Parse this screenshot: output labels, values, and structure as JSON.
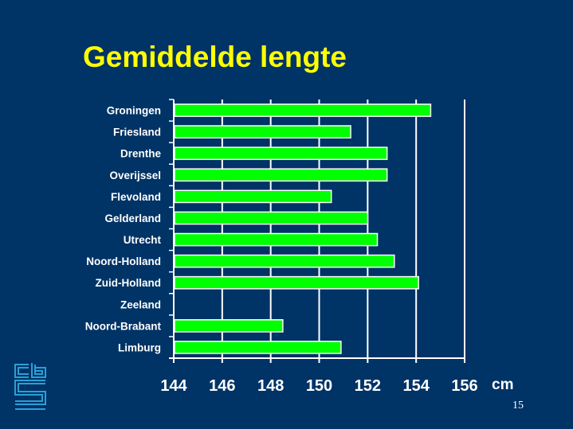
{
  "page": {
    "title": "Gemiddelde lengte",
    "page_number": "15"
  },
  "colors": {
    "background": "#003366",
    "title": "#ffff00",
    "bar_fill": "#00ff00",
    "bar_stroke": "#ffffff",
    "logo": "#2a9fd6"
  },
  "logo": {
    "icon": "cbs-logo-icon"
  },
  "chart_data": {
    "type": "bar",
    "orientation": "horizontal",
    "title": "Gemiddelde lengte",
    "xlabel": "cm",
    "xlim": [
      144,
      156
    ],
    "xticks": [
      144,
      146,
      148,
      150,
      152,
      154,
      156
    ],
    "grid": true,
    "categories": [
      "Groningen",
      "Friesland",
      "Drenthe",
      "Overijssel",
      "Flevoland",
      "Gelderland",
      "Utrecht",
      "Noord-Holland",
      "Zuid-Holland",
      "Zeeland",
      "Noord-Brabant",
      "Limburg"
    ],
    "values": [
      154.6,
      151.3,
      152.8,
      152.8,
      150.5,
      152.0,
      152.4,
      153.1,
      154.1,
      null,
      148.5,
      150.9
    ]
  }
}
